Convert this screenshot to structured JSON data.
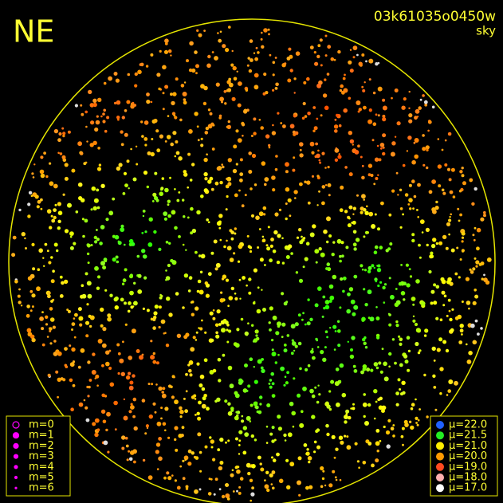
{
  "header": {
    "corner": "NE",
    "image_id": "03k61035o0450w",
    "label": "sky"
  },
  "legend_magnitude": {
    "items": [
      {
        "label": "m=0",
        "color": "#ff00ff"
      },
      {
        "label": "m=1",
        "color": "#ff00ff"
      },
      {
        "label": "m=2",
        "color": "#ff00ff"
      },
      {
        "label": "m=3",
        "color": "#ff00ff"
      },
      {
        "label": "m=4",
        "color": "#ff00ff"
      },
      {
        "label": "m=5",
        "color": "#ff00ff"
      },
      {
        "label": "m=6",
        "color": "#ff00ff"
      }
    ]
  },
  "legend_brightness": {
    "items": [
      {
        "label": "μ=22.0",
        "color": "#2060ff"
      },
      {
        "label": "μ=21.5",
        "color": "#22ee22"
      },
      {
        "label": "μ=21.0",
        "color": "#ffee00"
      },
      {
        "label": "μ=20.0",
        "color": "#ff9a00"
      },
      {
        "label": "μ=19.0",
        "color": "#ff4a20"
      },
      {
        "label": "μ=18.0",
        "color": "#ffb0b0"
      },
      {
        "label": "μ=17.0",
        "color": "#ffffff"
      }
    ]
  }
}
